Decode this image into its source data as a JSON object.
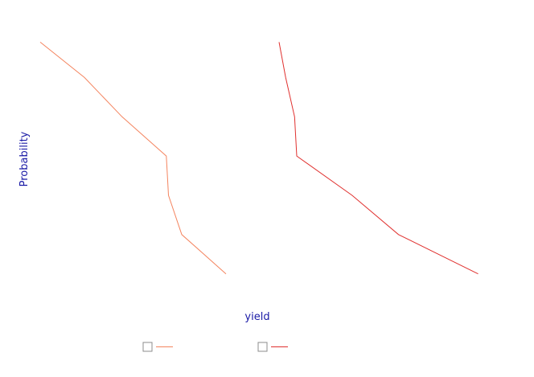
{
  "chart_data": {
    "type": "line",
    "xlabel": "yield",
    "ylabel": "Probability",
    "xlim": [
      0,
      10
    ],
    "ylim": [
      0,
      7
    ],
    "grid": false,
    "legend_placement": "bottom-center",
    "colors": {
      "label": "#1a1aa6",
      "legend_box": "#8c8c8c"
    },
    "series": [
      {
        "color": "#f4845f",
        "x": [
          0.0,
          1.0,
          1.85,
          2.85,
          2.9,
          3.2,
          4.2
        ],
        "y": [
          6.5,
          5.6,
          4.6,
          3.6,
          2.6,
          1.6,
          0.6
        ]
      },
      {
        "color": "#e0312f",
        "x": [
          5.4,
          5.55,
          5.75,
          5.8,
          7.05,
          8.1,
          9.9
        ],
        "y": [
          6.5,
          5.6,
          4.6,
          3.6,
          2.6,
          1.6,
          0.6
        ]
      }
    ]
  }
}
